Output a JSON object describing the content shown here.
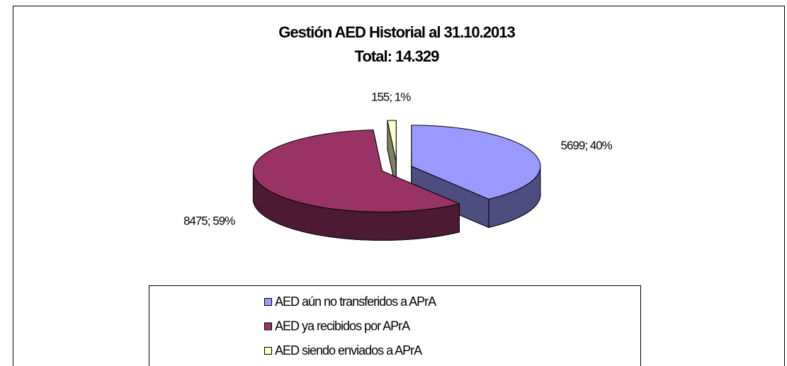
{
  "chart_data": {
    "type": "pie3d",
    "title": "Gestión AED Historial al 31.10.2013",
    "subtitle": "Total: 14.329",
    "categories": [
      "AED aún no transferidos a APrA",
      "AED ya recibidos por APrA",
      "AED siendo enviados a APrA"
    ],
    "values": [
      5699,
      8475,
      155
    ],
    "value_labels": [
      "5699; 40%",
      "8475; 59%",
      "155; 1%"
    ],
    "colors": [
      "#9999ff",
      "#993366",
      "#ffffcc"
    ],
    "legend": "bottom"
  }
}
